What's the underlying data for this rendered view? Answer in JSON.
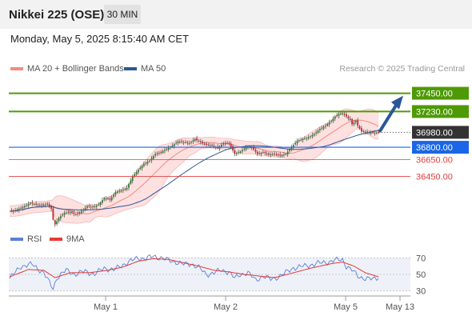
{
  "header": {
    "title": "Nikkei 225 (OSE)",
    "timeframe": "30 MIN"
  },
  "datetime": "Monday, May 5, 2025 8:15:40 AM CET",
  "legend": {
    "items": [
      {
        "label": "MA 20 + Bollinger Bands",
        "color": "#f28b82"
      },
      {
        "label": "MA 50",
        "color": "#2b5797"
      }
    ],
    "credit": "Research © 2025 Trading Central"
  },
  "rsi_legend": {
    "items": [
      {
        "label": "RSI",
        "color": "#5b7fd6"
      },
      {
        "label": "9MA",
        "color": "#e53935"
      }
    ]
  },
  "chart_data": [
    {
      "type": "candlestick",
      "title": "Nikkei 225 (OSE)",
      "y_range": [
        35780,
        37600
      ],
      "levels": [
        {
          "value": 37450,
          "label": "37450.00",
          "kind": "resistance",
          "color": "#4e9a06"
        },
        {
          "value": 37230,
          "label": "37230.00",
          "kind": "resistance",
          "color": "#4e9a06"
        },
        {
          "value": 36980,
          "label": "36980.00",
          "kind": "last-price",
          "color": "#333333"
        },
        {
          "value": 36800,
          "label": "36800.00",
          "kind": "pivot",
          "color": "#1a66e6"
        },
        {
          "value": 36650,
          "label": "36650.00",
          "kind": "support",
          "color": "#e04040"
        },
        {
          "value": 36450,
          "label": "36450.00",
          "kind": "support",
          "color": "#e04040"
        }
      ],
      "x_ticks": [
        "May 1",
        "May 2",
        "May 5",
        "May 13"
      ],
      "anchors": [
        [
          0,
          36030
        ],
        [
          3,
          36040
        ],
        [
          7,
          36080
        ],
        [
          11,
          36130
        ],
        [
          14,
          36110
        ],
        [
          17,
          36100
        ],
        [
          20,
          36120
        ],
        [
          22,
          36060
        ],
        [
          23,
          35930
        ],
        [
          24,
          35870
        ],
        [
          26,
          35950
        ],
        [
          29,
          36010
        ],
        [
          32,
          36020
        ],
        [
          35,
          35990
        ],
        [
          38,
          36030
        ],
        [
          41,
          36090
        ],
        [
          44,
          36080
        ],
        [
          47,
          36110
        ],
        [
          50,
          36190
        ],
        [
          53,
          36170
        ],
        [
          56,
          36260
        ],
        [
          59,
          36280
        ],
        [
          62,
          36310
        ],
        [
          65,
          36450
        ],
        [
          68,
          36530
        ],
        [
          71,
          36600
        ],
        [
          74,
          36640
        ],
        [
          77,
          36720
        ],
        [
          80,
          36740
        ],
        [
          83,
          36780
        ],
        [
          86,
          36820
        ],
        [
          89,
          36870
        ],
        [
          92,
          36860
        ],
        [
          95,
          36850
        ],
        [
          98,
          36900
        ],
        [
          101,
          36860
        ],
        [
          104,
          36830
        ],
        [
          107,
          36820
        ],
        [
          110,
          36790
        ],
        [
          113,
          36850
        ],
        [
          116,
          36850
        ],
        [
          119,
          36720
        ],
        [
          122,
          36750
        ],
        [
          125,
          36800
        ],
        [
          128,
          36800
        ],
        [
          131,
          36720
        ],
        [
          134,
          36740
        ],
        [
          137,
          36710
        ],
        [
          140,
          36720
        ],
        [
          143,
          36700
        ],
        [
          146,
          36720
        ],
        [
          149,
          36800
        ],
        [
          152,
          36880
        ],
        [
          155,
          36900
        ],
        [
          158,
          36920
        ],
        [
          161,
          36960
        ],
        [
          164,
          37020
        ],
        [
          167,
          37060
        ],
        [
          170,
          37120
        ],
        [
          172,
          37170
        ],
        [
          174,
          37200
        ],
        [
          176,
          37210
        ],
        [
          178,
          37170
        ],
        [
          180,
          37130
        ],
        [
          181,
          37080
        ],
        [
          183,
          37120
        ],
        [
          184,
          37060
        ],
        [
          186,
          36990
        ],
        [
          189,
          36980
        ],
        [
          192,
          36975
        ],
        [
          195,
          36980
        ]
      ],
      "arrow_target": 37450
    },
    {
      "type": "line",
      "title": "RSI",
      "y_range": [
        20,
        80
      ],
      "tick_labels": [
        "70",
        "50",
        "30"
      ],
      "series": [
        {
          "name": "RSI",
          "color": "#5b7fd6",
          "anchors": [
            [
              0,
              45
            ],
            [
              6,
              60
            ],
            [
              12,
              62
            ],
            [
              18,
              52
            ],
            [
              21,
              40
            ],
            [
              23,
              33
            ],
            [
              25,
              46
            ],
            [
              30,
              55
            ],
            [
              35,
              50
            ],
            [
              40,
              54
            ],
            [
              45,
              50
            ],
            [
              50,
              58
            ],
            [
              55,
              55
            ],
            [
              60,
              62
            ],
            [
              64,
              66
            ],
            [
              68,
              70
            ],
            [
              72,
              69
            ],
            [
              76,
              72
            ],
            [
              80,
              70
            ],
            [
              84,
              67
            ],
            [
              88,
              65
            ],
            [
              92,
              62
            ],
            [
              96,
              63
            ],
            [
              100,
              58
            ],
            [
              104,
              50
            ],
            [
              108,
              52
            ],
            [
              112,
              55
            ],
            [
              116,
              53
            ],
            [
              119,
              45
            ],
            [
              122,
              50
            ],
            [
              126,
              52
            ],
            [
              130,
              43
            ],
            [
              134,
              48
            ],
            [
              138,
              44
            ],
            [
              142,
              47
            ],
            [
              146,
              52
            ],
            [
              150,
              58
            ],
            [
              156,
              60
            ],
            [
              162,
              63
            ],
            [
              168,
              65
            ],
            [
              172,
              67
            ],
            [
              176,
              68
            ],
            [
              178,
              60
            ],
            [
              181,
              55
            ],
            [
              184,
              48
            ],
            [
              188,
              45
            ],
            [
              192,
              44
            ],
            [
              195,
              47
            ]
          ]
        },
        {
          "name": "9MA",
          "color": "#e53935",
          "anchors": [
            [
              0,
              47
            ],
            [
              10,
              56
            ],
            [
              18,
              55
            ],
            [
              24,
              46
            ],
            [
              32,
              52
            ],
            [
              42,
              52
            ],
            [
              52,
              55
            ],
            [
              60,
              59
            ],
            [
              68,
              66
            ],
            [
              76,
              69
            ],
            [
              84,
              68
            ],
            [
              92,
              64
            ],
            [
              100,
              60
            ],
            [
              108,
              55
            ],
            [
              116,
              53
            ],
            [
              124,
              50
            ],
            [
              132,
              48
            ],
            [
              140,
              46
            ],
            [
              150,
              52
            ],
            [
              160,
              58
            ],
            [
              170,
              63
            ],
            [
              176,
              65
            ],
            [
              182,
              60
            ],
            [
              188,
              52
            ],
            [
              195,
              47
            ]
          ]
        }
      ]
    }
  ]
}
